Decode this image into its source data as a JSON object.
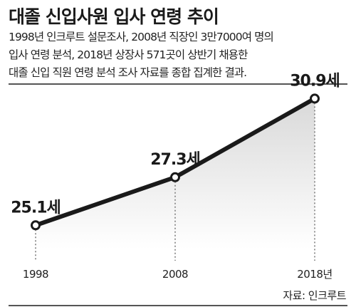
{
  "title": "대졸 신입사원 입사 연령 추이",
  "description": [
    "1998년 인크루트 설문조사, 2008년 직장인 3만7000여 명의",
    "입사 연령 분석, 2018년 상장사 571곳이 상반기 채용한",
    "대졸 신입 직원 연령 분석 조사 자료를 종합 집계한 결과."
  ],
  "source": "자료: 인크루트",
  "chart_data": {
    "type": "line",
    "title": "대졸 신입사원 입사 연령 추이",
    "categories": [
      "1998",
      "2008",
      "2018년"
    ],
    "values": [
      25.1,
      27.3,
      30.9
    ],
    "data_labels": [
      "25.1세",
      "27.3세",
      "30.9세"
    ],
    "unit": "세",
    "xlabel": "",
    "ylabel": "",
    "ylim": [
      24,
      31.5
    ],
    "grid": false,
    "legend": "none",
    "colors": {
      "line": "#1a1a1a",
      "marker_fill": "#ffffff",
      "area_top": "#d9d9d9",
      "area_bottom": "#ffffff",
      "drop_line": "#777777"
    }
  }
}
